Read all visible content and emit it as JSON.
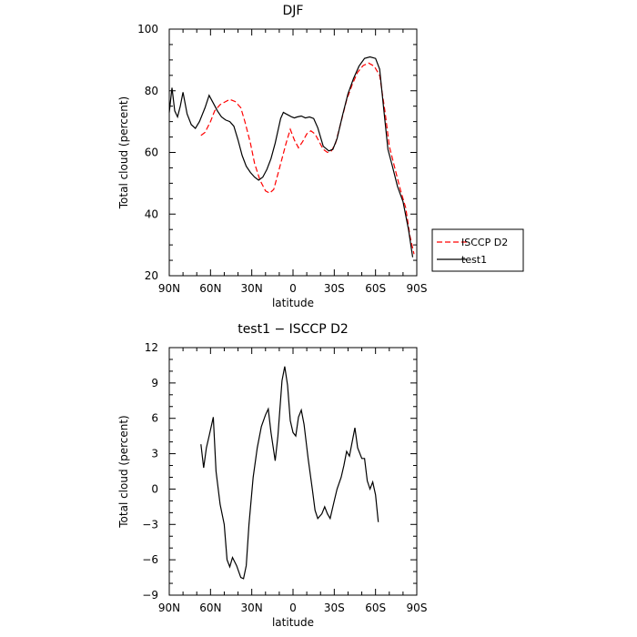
{
  "chart_data": [
    {
      "type": "line",
      "title": "DJF",
      "xlabel": "latitude",
      "ylabel": "Total cloud (percent)",
      "xlim": [
        90,
        -90
      ],
      "ylim": [
        20,
        100
      ],
      "x_ticks": [
        90,
        60,
        30,
        0,
        -30,
        -60,
        -90
      ],
      "x_tick_labels": [
        "90N",
        "60N",
        "30N",
        "0",
        "30S",
        "60S",
        "90S"
      ],
      "y_ticks": [
        20,
        40,
        60,
        80,
        100
      ],
      "y_tick_labels": [
        "20",
        "40",
        "60",
        "80",
        "100"
      ],
      "legend": {
        "placement": "right-bottom-outside"
      },
      "series": [
        {
          "name": "ISCCP D2",
          "color": "#ff0000",
          "dash": "dashed",
          "points": [
            [
              67,
              65.5
            ],
            [
              64,
              66.5
            ],
            [
              60,
              70
            ],
            [
              57,
              73.5
            ],
            [
              53,
              75.5
            ],
            [
              49,
              76.5
            ],
            [
              46,
              77.2
            ],
            [
              42,
              76.5
            ],
            [
              38,
              74.5
            ],
            [
              35,
              70
            ],
            [
              31,
              63
            ],
            [
              28,
              56.5
            ],
            [
              24,
              51
            ],
            [
              20,
              47.5
            ],
            [
              17,
              46.8
            ],
            [
              14,
              48
            ],
            [
              11,
              53
            ],
            [
              8,
              58
            ],
            [
              5,
              63
            ],
            [
              2,
              67.5
            ],
            [
              -1,
              64
            ],
            [
              -4,
              61.5
            ],
            [
              -7,
              63.5
            ],
            [
              -10,
              66
            ],
            [
              -13,
              67
            ],
            [
              -16,
              66
            ],
            [
              -19,
              63.5
            ],
            [
              -22,
              61
            ],
            [
              -25,
              60
            ],
            [
              -28,
              60.5
            ],
            [
              -31,
              63
            ],
            [
              -35,
              70
            ],
            [
              -39,
              77
            ],
            [
              -43,
              82
            ],
            [
              -47,
              86
            ],
            [
              -51,
              88.2
            ],
            [
              -55,
              89
            ],
            [
              -59,
              88
            ],
            [
              -63,
              85
            ],
            [
              -67,
              73
            ],
            [
              -70,
              62
            ],
            [
              -74,
              55
            ],
            [
              -78,
              48
            ],
            [
              -82,
              42
            ],
            [
              -85,
              33
            ],
            [
              -88,
              27
            ]
          ]
        },
        {
          "name": "test1",
          "color": "#000000",
          "dash": "solid",
          "points": [
            [
              90,
              73
            ],
            [
              88,
              81
            ],
            [
              86,
              73.5
            ],
            [
              84,
              71.5
            ],
            [
              82,
              75
            ],
            [
              80,
              79.5
            ],
            [
              77,
              72.5
            ],
            [
              74,
              69
            ],
            [
              71,
              67.8
            ],
            [
              68,
              70
            ],
            [
              64,
              74.5
            ],
            [
              61,
              78.5
            ],
            [
              58,
              76
            ],
            [
              55,
              73.5
            ],
            [
              52,
              71.5
            ],
            [
              49,
              70.5
            ],
            [
              46,
              70
            ],
            [
              43,
              68.5
            ],
            [
              40,
              64
            ],
            [
              37,
              59
            ],
            [
              34,
              55.5
            ],
            [
              31,
              53.5
            ],
            [
              28,
              52
            ],
            [
              25,
              51
            ],
            [
              22,
              52
            ],
            [
              19,
              54.5
            ],
            [
              16,
              58
            ],
            [
              13,
              63
            ],
            [
              11,
              67
            ],
            [
              9,
              71
            ],
            [
              7,
              73
            ],
            [
              5,
              72.5
            ],
            [
              3,
              72
            ],
            [
              1,
              71.5
            ],
            [
              -1,
              71.2
            ],
            [
              -3,
              71.5
            ],
            [
              -6,
              71.8
            ],
            [
              -9,
              71.2
            ],
            [
              -12,
              71.5
            ],
            [
              -15,
              71
            ],
            [
              -18,
              68
            ],
            [
              -22,
              62
            ],
            [
              -26,
              60.5
            ],
            [
              -29,
              61
            ],
            [
              -32,
              64.5
            ],
            [
              -36,
              72
            ],
            [
              -40,
              79
            ],
            [
              -44,
              84
            ],
            [
              -48,
              88
            ],
            [
              -52,
              90.5
            ],
            [
              -56,
              91
            ],
            [
              -60,
              90.5
            ],
            [
              -63,
              87
            ],
            [
              -66,
              74
            ],
            [
              -69,
              61
            ],
            [
              -72,
              56
            ],
            [
              -76,
              49
            ],
            [
              -80,
              44
            ],
            [
              -84,
              35
            ],
            [
              -87,
              26
            ]
          ]
        }
      ]
    },
    {
      "type": "line",
      "title": "test1 − ISCCP D2",
      "xlabel": "latitude",
      "ylabel": "Total cloud (percent)",
      "xlim": [
        90,
        -90
      ],
      "ylim": [
        -9,
        12
      ],
      "x_ticks": [
        90,
        60,
        30,
        0,
        -30,
        -60,
        -90
      ],
      "x_tick_labels": [
        "90N",
        "60N",
        "30N",
        "0",
        "30S",
        "60S",
        "90S"
      ],
      "y_ticks": [
        -9,
        -6,
        -3,
        0,
        3,
        6,
        9,
        12
      ],
      "y_tick_labels": [
        "−9",
        "−6",
        "−3",
        "0",
        "3",
        "6",
        "9",
        "12"
      ],
      "series": [
        {
          "color": "#000000",
          "dash": "solid",
          "points": [
            [
              67,
              3.8
            ],
            [
              65,
              1.8
            ],
            [
              63,
              3.5
            ],
            [
              61,
              4.5
            ],
            [
              58,
              6.1
            ],
            [
              56,
              1.5
            ],
            [
              53,
              -1.3
            ],
            [
              50,
              -3
            ],
            [
              48,
              -6
            ],
            [
              46,
              -6.6
            ],
            [
              44,
              -5.8
            ],
            [
              41,
              -6.5
            ],
            [
              38,
              -7.5
            ],
            [
              36,
              -7.6
            ],
            [
              34,
              -6.5
            ],
            [
              32,
              -3
            ],
            [
              29,
              1
            ],
            [
              26,
              3.5
            ],
            [
              23,
              5.3
            ],
            [
              20,
              6.3
            ],
            [
              18,
              6.8
            ],
            [
              16,
              4.8
            ],
            [
              13,
              2.4
            ],
            [
              11,
              4.5
            ],
            [
              8,
              9.2
            ],
            [
              6,
              10.4
            ],
            [
              4,
              8.8
            ],
            [
              2,
              5.8
            ],
            [
              0,
              4.8
            ],
            [
              -2,
              4.5
            ],
            [
              -4,
              6.1
            ],
            [
              -6,
              6.7
            ],
            [
              -8,
              5.5
            ],
            [
              -11,
              2.6
            ],
            [
              -14,
              0
            ],
            [
              -16,
              -1.8
            ],
            [
              -18,
              -2.5
            ],
            [
              -21,
              -2.1
            ],
            [
              -23,
              -1.5
            ],
            [
              -25,
              -2.1
            ],
            [
              -27,
              -2.5
            ],
            [
              -30,
              -1
            ],
            [
              -32,
              0
            ],
            [
              -35,
              1
            ],
            [
              -37,
              2
            ],
            [
              -39,
              3.2
            ],
            [
              -41,
              2.8
            ],
            [
              -43,
              4
            ],
            [
              -45,
              5.2
            ],
            [
              -47,
              3.5
            ],
            [
              -50,
              2.6
            ],
            [
              -52,
              2.6
            ],
            [
              -54,
              0.7
            ],
            [
              -56,
              0
            ],
            [
              -58,
              0.6
            ],
            [
              -60,
              -0.5
            ],
            [
              -62,
              -2.8
            ]
          ]
        }
      ]
    }
  ]
}
